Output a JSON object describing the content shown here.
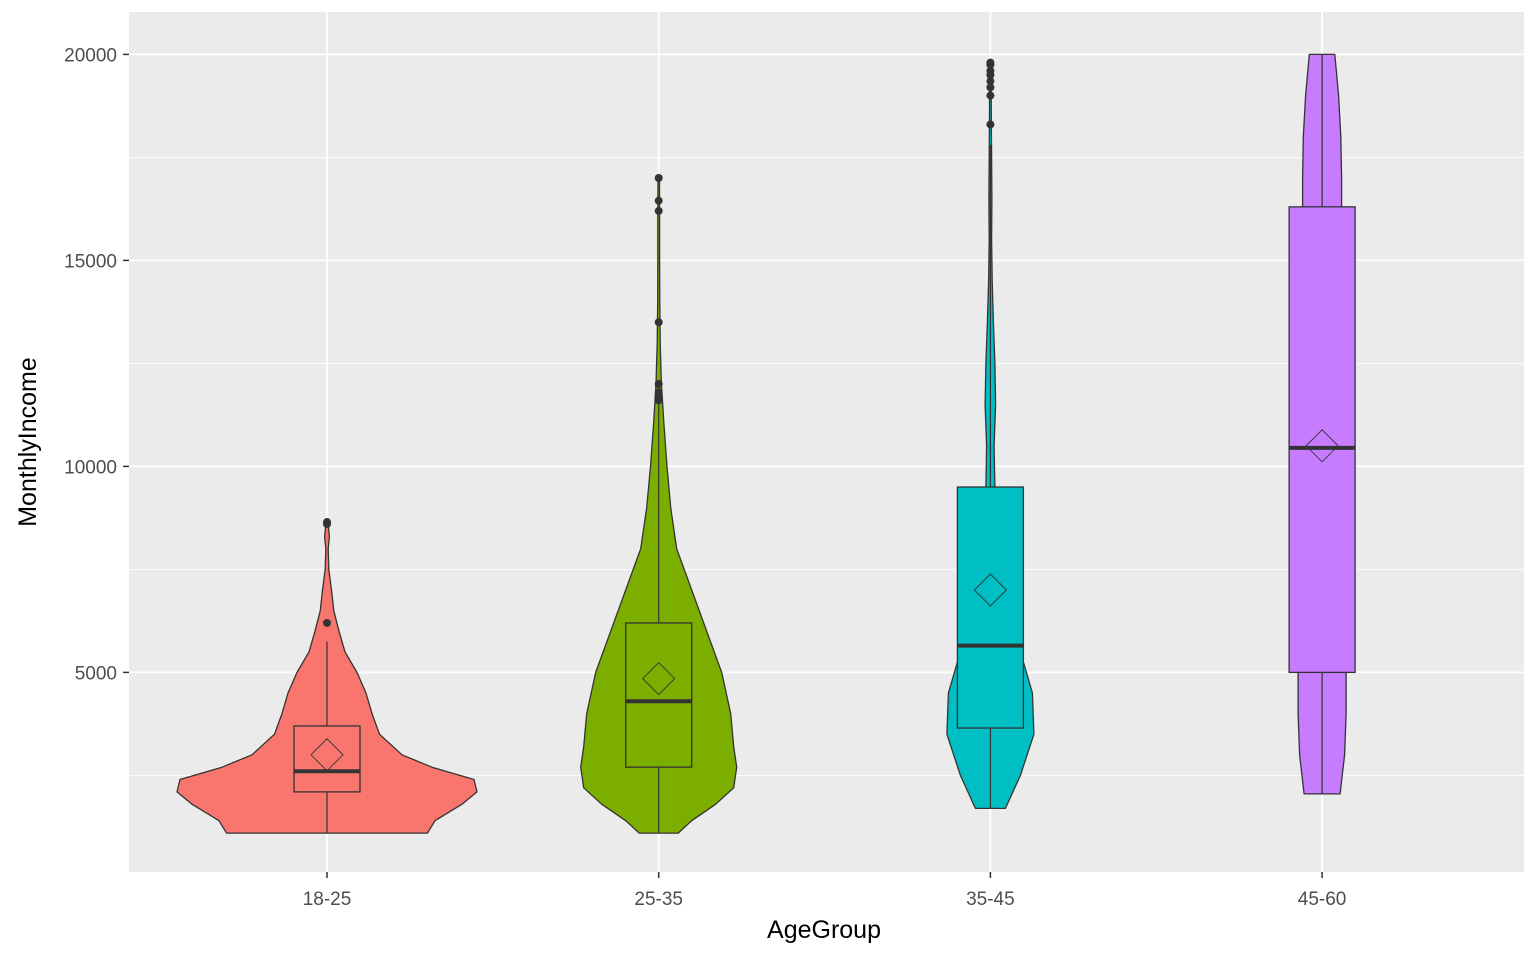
{
  "chart_data": {
    "type": "violin",
    "overlay": "boxplot with mean markers",
    "xlabel": "AgeGroup",
    "ylabel": "MonthlyIncome",
    "ylim": [
      0,
      20000
    ],
    "y_ticks": [
      5000,
      10000,
      15000,
      20000
    ],
    "grid": true,
    "legend": "none",
    "groups": [
      {
        "category": "18-25",
        "color": "#F8766D",
        "min": 1100,
        "q1": 2100,
        "median": 2600,
        "q3": 3700,
        "whisker_high": 5750,
        "mean": 3000,
        "outliers": [
          6200,
          8600,
          8650
        ],
        "violin": [
          [
            1100,
            0.67
          ],
          [
            1400,
            0.72
          ],
          [
            1800,
            0.9
          ],
          [
            2100,
            1.0
          ],
          [
            2400,
            0.98
          ],
          [
            2700,
            0.7
          ],
          [
            3000,
            0.5
          ],
          [
            3500,
            0.35
          ],
          [
            4000,
            0.3
          ],
          [
            4500,
            0.26
          ],
          [
            5000,
            0.2
          ],
          [
            5500,
            0.12
          ],
          [
            6000,
            0.08
          ],
          [
            6500,
            0.045
          ],
          [
            7000,
            0.03
          ],
          [
            7500,
            0.012
          ],
          [
            8000,
            0.008
          ],
          [
            8300,
            0.016
          ],
          [
            8650,
            0.006
          ]
        ]
      },
      {
        "category": "25-35",
        "color": "#7CAE00",
        "min": 1100,
        "q1": 2700,
        "median": 4300,
        "q3": 6200,
        "whisker_high": 11500,
        "mean": 4850,
        "outliers": [
          11600,
          11700,
          11800,
          12000,
          13500,
          16200,
          16450,
          17000
        ],
        "violin": [
          [
            1100,
            0.13
          ],
          [
            1400,
            0.22
          ],
          [
            1800,
            0.38
          ],
          [
            2200,
            0.5
          ],
          [
            2700,
            0.52
          ],
          [
            3200,
            0.5
          ],
          [
            4000,
            0.48
          ],
          [
            5000,
            0.42
          ],
          [
            6000,
            0.32
          ],
          [
            7000,
            0.22
          ],
          [
            8000,
            0.12
          ],
          [
            9000,
            0.08
          ],
          [
            10000,
            0.055
          ],
          [
            11000,
            0.035
          ],
          [
            12000,
            0.018
          ],
          [
            13000,
            0.01
          ],
          [
            14000,
            0.007
          ],
          [
            15000,
            0.006
          ],
          [
            16000,
            0.006
          ],
          [
            17000,
            0.005
          ]
        ]
      },
      {
        "category": "35-45",
        "color": "#00BFC4",
        "min": 1700,
        "q1": 3650,
        "median": 5650,
        "q3": 9500,
        "whisker_high": 17800,
        "mean": 7000,
        "outliers": [
          18300,
          19000,
          19200,
          19350,
          19500,
          19600,
          19750,
          19800
        ],
        "violin": [
          [
            1700,
            0.1
          ],
          [
            2500,
            0.2
          ],
          [
            3500,
            0.29
          ],
          [
            4500,
            0.28
          ],
          [
            5500,
            0.2
          ],
          [
            6500,
            0.1
          ],
          [
            7500,
            0.065
          ],
          [
            8500,
            0.05
          ],
          [
            9500,
            0.03
          ],
          [
            10500,
            0.025
          ],
          [
            11500,
            0.035
          ],
          [
            12500,
            0.03
          ],
          [
            13500,
            0.02
          ],
          [
            14500,
            0.012
          ],
          [
            15500,
            0.008
          ],
          [
            16500,
            0.01
          ],
          [
            17500,
            0.008
          ],
          [
            18500,
            0.006
          ],
          [
            19800,
            0.005
          ]
        ]
      },
      {
        "category": "45-60",
        "color": "#C77CFF",
        "min": 2050,
        "q1": 5000,
        "median": 10450,
        "q3": 16300,
        "whisker_high": 20000,
        "mean": 10500,
        "outliers": [],
        "violin": [
          [
            2050,
            0.12
          ],
          [
            3000,
            0.15
          ],
          [
            4000,
            0.16
          ],
          [
            5000,
            0.16
          ],
          [
            6000,
            0.15
          ],
          [
            7000,
            0.14
          ],
          [
            8000,
            0.125
          ],
          [
            9000,
            0.115
          ],
          [
            10000,
            0.105
          ],
          [
            11000,
            0.1
          ],
          [
            12000,
            0.1
          ],
          [
            13000,
            0.11
          ],
          [
            14000,
            0.12
          ],
          [
            15000,
            0.125
          ],
          [
            16000,
            0.13
          ],
          [
            17000,
            0.13
          ],
          [
            18000,
            0.125
          ],
          [
            19000,
            0.11
          ],
          [
            20000,
            0.085
          ]
        ]
      }
    ]
  }
}
